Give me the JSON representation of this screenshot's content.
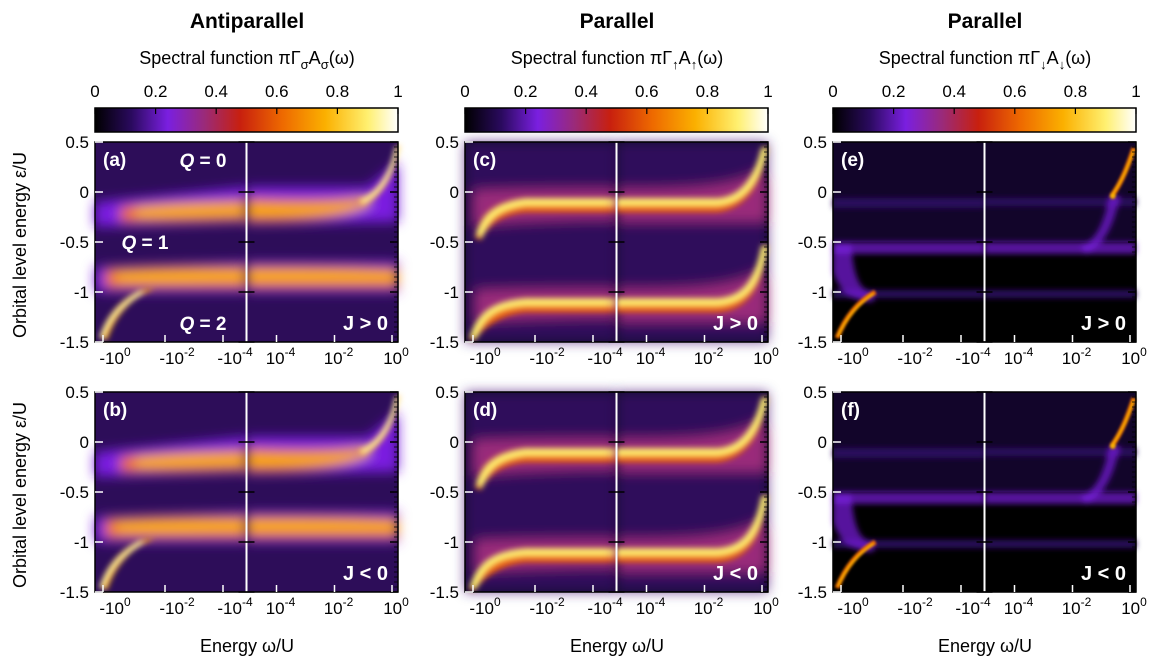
{
  "chart_data": {
    "type": "heatmap",
    "columns": [
      {
        "title": "Antiparallel",
        "colorbar_label": "Spectral function πΓ",
        "colorbar_label_sub": "σ",
        "colorbar_label_mid": "A",
        "colorbar_label_sub2": "σ",
        "colorbar_label_end": "(ω)"
      },
      {
        "title": "Parallel",
        "colorbar_label": "Spectral function πΓ",
        "colorbar_label_sub": "↑",
        "colorbar_label_mid": "A",
        "colorbar_label_sub2": "↑",
        "colorbar_label_end": "(ω)"
      },
      {
        "title": "Parallel",
        "colorbar_label": "Spectral function πΓ",
        "colorbar_label_sub": "↓",
        "colorbar_label_mid": "A",
        "colorbar_label_sub2": "↓",
        "colorbar_label_end": "(ω)"
      }
    ],
    "colorbar_ticks": [
      "0",
      "0.2",
      "0.4",
      "0.6",
      "0.8",
      "1"
    ],
    "colorbar_range": [
      0,
      1
    ],
    "colormap": [
      "#000000",
      "#2a0a5e",
      "#7a1fe0",
      "#9a2a7a",
      "#c8200e",
      "#ee6a00",
      "#fbb000",
      "#fff070",
      "#ffffff"
    ],
    "ylabel": "Orbital level energy ε/U",
    "xlabel": "Energy ω/U",
    "y_ticks": [
      "0.5",
      "0",
      "-0.5",
      "-1",
      "-1.5"
    ],
    "y_tick_values": [
      0.5,
      0,
      -0.5,
      -1,
      -1.5
    ],
    "ylim": [
      -1.5,
      0.5
    ],
    "x_ticks_left": [
      {
        "base": "-10",
        "exp": "0"
      },
      {
        "base": "-10",
        "exp": "-2"
      },
      {
        "base": "-10",
        "exp": "-4"
      }
    ],
    "x_ticks_right": [
      {
        "base": "10",
        "exp": "-4"
      },
      {
        "base": "10",
        "exp": "-2"
      },
      {
        "base": "10",
        "exp": "0"
      }
    ],
    "panels": [
      {
        "label": "(a)",
        "coupling": "J > 0"
      },
      {
        "label": "(b)",
        "coupling": "J < 0"
      },
      {
        "label": "(c)",
        "coupling": "J > 0"
      },
      {
        "label": "(d)",
        "coupling": "J < 0"
      },
      {
        "label": "(e)",
        "coupling": "J > 0"
      },
      {
        "label": "(f)",
        "coupling": "J < 0"
      }
    ],
    "charge_labels": [
      {
        "q": "Q",
        "eq": " = 0"
      },
      {
        "q": "Q",
        "eq": " = 1"
      },
      {
        "q": "Q",
        "eq": " = 2"
      }
    ]
  }
}
